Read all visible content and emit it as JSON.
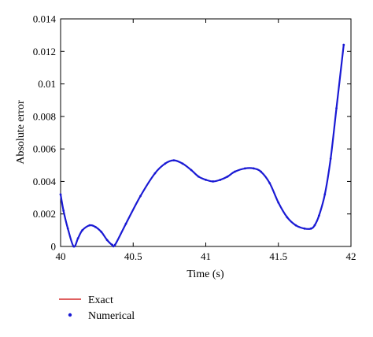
{
  "chart_data": {
    "type": "line",
    "title": "",
    "xlabel": "Time (s)",
    "ylabel": "Absolute error",
    "xlim": [
      40,
      42
    ],
    "ylim": [
      0,
      0.014
    ],
    "xticks": [
      "40",
      "40.5",
      "41",
      "41.5",
      "42"
    ],
    "yticks": [
      "0",
      "0.002",
      "0.004",
      "0.006",
      "0.008",
      "0.01",
      "0.012",
      "0.014"
    ],
    "grid": false,
    "legend_position": "bottom-left",
    "series": [
      {
        "name": "Exact",
        "style": "line",
        "color": "#cc0000",
        "x": [
          40.0,
          40.02,
          40.05,
          40.09,
          40.12,
          40.15,
          40.2,
          40.24,
          40.28,
          40.32,
          40.355,
          40.375,
          40.45,
          40.55,
          40.65,
          40.72,
          40.78,
          40.84,
          40.9,
          40.95,
          41.0,
          41.05,
          41.1,
          41.15,
          41.2,
          41.27,
          41.33,
          41.38,
          41.44,
          41.5,
          41.56,
          41.62,
          41.68,
          41.725,
          41.75,
          41.78,
          41.82,
          41.86,
          41.9,
          41.95
        ],
        "y": [
          0.0032,
          0.0022,
          0.0011,
          0.0,
          0.0005,
          0.001,
          0.0013,
          0.0012,
          0.0009,
          0.0004,
          0.0001,
          0.0001,
          0.0014,
          0.0031,
          0.0045,
          0.0051,
          0.0053,
          0.0051,
          0.0047,
          0.0043,
          0.0041,
          0.004,
          0.0041,
          0.0043,
          0.0046,
          0.0048,
          0.0048,
          0.0046,
          0.0039,
          0.0027,
          0.0018,
          0.0013,
          0.0011,
          0.0011,
          0.0013,
          0.0019,
          0.0032,
          0.0054,
          0.0085,
          0.0124
        ]
      },
      {
        "name": "Numerical",
        "style": "points",
        "color": "#1a1ad4",
        "x": [
          40.0,
          40.02,
          40.05,
          40.09,
          40.12,
          40.15,
          40.2,
          40.24,
          40.28,
          40.32,
          40.355,
          40.375,
          40.45,
          40.55,
          40.65,
          40.72,
          40.78,
          40.84,
          40.9,
          40.95,
          41.0,
          41.05,
          41.1,
          41.15,
          41.2,
          41.27,
          41.33,
          41.38,
          41.44,
          41.5,
          41.56,
          41.62,
          41.68,
          41.725,
          41.75,
          41.78,
          41.82,
          41.86,
          41.9,
          41.95
        ],
        "y": [
          0.0032,
          0.0022,
          0.0011,
          0.0,
          0.0005,
          0.001,
          0.0013,
          0.0012,
          0.0009,
          0.0004,
          0.0001,
          0.0001,
          0.0014,
          0.0031,
          0.0045,
          0.0051,
          0.0053,
          0.0051,
          0.0047,
          0.0043,
          0.0041,
          0.004,
          0.0041,
          0.0043,
          0.0046,
          0.0048,
          0.0048,
          0.0046,
          0.0039,
          0.0027,
          0.0018,
          0.0013,
          0.0011,
          0.0011,
          0.0013,
          0.0019,
          0.0032,
          0.0054,
          0.0085,
          0.0124
        ]
      }
    ]
  }
}
